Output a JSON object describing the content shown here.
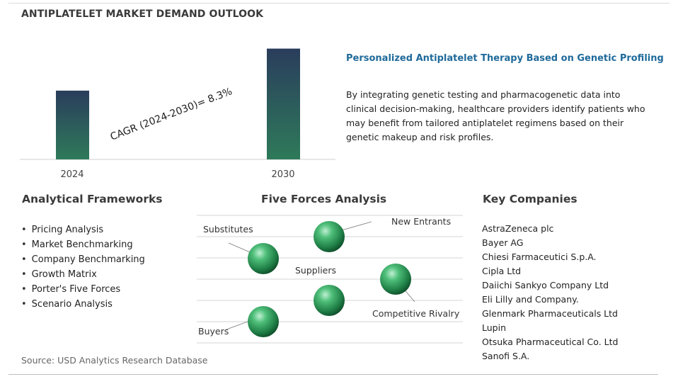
{
  "title": "ANTIPLATELET MARKET DEMAND OUTLOOK",
  "chart_data": {
    "type": "bar",
    "categories": [
      "2024",
      "2030"
    ],
    "values": [
      1.0,
      1.61
    ],
    "ylim": [
      0,
      1.75
    ],
    "annotation": "CAGR (2024-2030)=  8.3%",
    "grid": false,
    "colors": [
      "#2e6f5e",
      "#2a3d5c"
    ]
  },
  "highlight": {
    "heading": "Personalized Antiplatelet Therapy Based on Genetic Profiling",
    "body": "By integrating genetic testing and pharmacogenetic data into clinical decision-making, healthcare providers identify patients who may benefit from tailored antiplatelet regimens based on their genetic makeup and risk profiles."
  },
  "frameworks": {
    "heading": "Analytical Frameworks",
    "items": [
      "Pricing Analysis",
      "Market Benchmarking",
      "Company Benchmarking",
      "Growth Matrix",
      "Porter's Five Forces",
      "Scenario Analysis"
    ]
  },
  "five_forces": {
    "heading": "Five Forces Analysis",
    "forces": [
      "Substitutes",
      "New Entrants",
      "Suppliers",
      "Competitive Rivalry",
      "Buyers"
    ]
  },
  "companies": {
    "heading": "Key Companies",
    "items": [
      "AstraZeneca plc",
      "Bayer AG",
      "Chiesi Farmaceutici S.p.A.",
      "Cipla Ltd",
      "Daiichi Sankyo Company Ltd",
      "Eli Lilly and Company.",
      "Glenmark Pharmaceuticals Ltd",
      "Lupin",
      "Otsuka Pharmaceutical Co. Ltd",
      "Sanofi S.A."
    ]
  },
  "source": "Source: USD Analytics Research Database"
}
